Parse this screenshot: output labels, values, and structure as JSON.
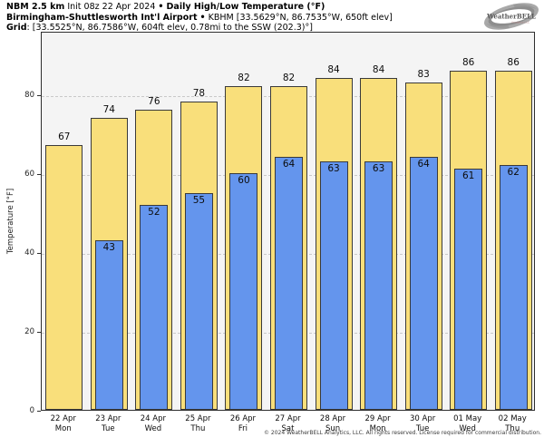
{
  "header": {
    "line1": {
      "model": "NBM 2.5 km",
      "init": "Init 08z 22 Apr 2024",
      "sep": "•",
      "title": "Daily High/Low Temperature (°F)"
    },
    "line2": {
      "station": "Birmingham-Shuttlesworth Int'l Airport",
      "sep": "•",
      "station_id": "KBHM [33.5629°N, 86.7535°W, 650ft elev]"
    },
    "line3": {
      "label": "Grid",
      "value": ": [33.5525°N, 86.7586°W, 604ft elev, 0.78mi to the SSW (202.3)°]"
    }
  },
  "logo": {
    "text": "WeatherBELL",
    "subtext": "Analytics LLC"
  },
  "footer": {
    "copyright": "© 2024 WeatherBELL Analytics, LLC. All rights reserved. License required for commercial distribution."
  },
  "colors": {
    "high_bar": "#f9df7b",
    "low_bar": "#6495ed",
    "bar_border": "#3a3a3a",
    "plot_background": "#f4f4f4",
    "gridline": "#c9c9c9"
  },
  "chart_data": {
    "type": "bar",
    "title": "NBM 2.5 km Init 08z 22 Apr 2024 • Daily High/Low Temperature (°F)",
    "subtitle": "Birmingham-Shuttlesworth Int'l Airport • KBHM [33.5629°N, 86.7535°W, 650ft elev]",
    "xlabel": "",
    "ylabel": "Temperature [°F]",
    "ylim": [
      0,
      96
    ],
    "yticks": [
      0,
      20,
      40,
      60,
      80
    ],
    "grid": "horizontal dashed at yticks, behind bars",
    "legend_position": "none",
    "categories": [
      "22 Apr",
      "23 Apr",
      "24 Apr",
      "25 Apr",
      "26 Apr",
      "27 Apr",
      "28 Apr",
      "29 Apr",
      "30 Apr",
      "01 May",
      "02 May"
    ],
    "weekdays": [
      "Mon",
      "Tue",
      "Wed",
      "Thu",
      "Fri",
      "Sat",
      "Sun",
      "Mon",
      "Tue",
      "Wed",
      "Thu"
    ],
    "series": [
      {
        "name": "Daily High",
        "color": "#f9df7b",
        "values": [
          67,
          74,
          76,
          78,
          82,
          82,
          84,
          84,
          83,
          86,
          86
        ]
      },
      {
        "name": "Daily Low",
        "color": "#6495ed",
        "values": [
          null,
          43,
          52,
          55,
          60,
          64,
          63,
          63,
          64,
          61,
          62
        ]
      }
    ]
  }
}
